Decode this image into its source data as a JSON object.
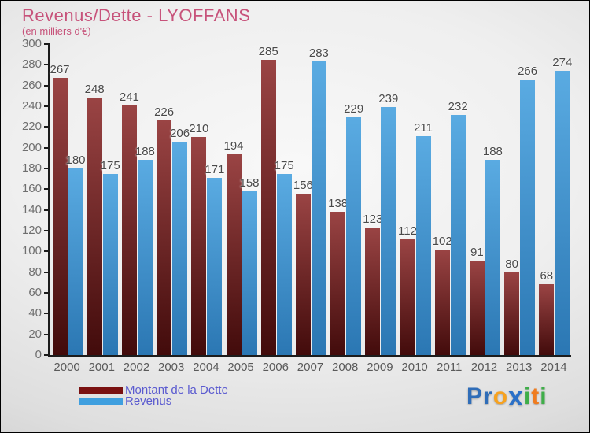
{
  "title": {
    "text": "Revenus/Dette - LYOFFANS",
    "subtitle": "(en milliers d'€)",
    "color": "#c7527a"
  },
  "chart_data": {
    "type": "bar",
    "title": "Revenus/Dette - LYOFFANS",
    "subtitle": "(en milliers d'€)",
    "categories": [
      "2000",
      "2001",
      "2002",
      "2003",
      "2004",
      "2005",
      "2006",
      "2007",
      "2008",
      "2009",
      "2010",
      "2011",
      "2012",
      "2013",
      "2014"
    ],
    "series": [
      {
        "name": "Montant de la Dette",
        "values": [
          267,
          248,
          241,
          226,
          210,
          194,
          285,
          156,
          138,
          123,
          112,
          102,
          91,
          80,
          68
        ],
        "color_top": "#9a4444",
        "color_bottom": "#420b0b",
        "legend_color": "#7a1111"
      },
      {
        "name": "Revenus",
        "values": [
          180,
          175,
          188,
          206,
          171,
          158,
          175,
          283,
          229,
          239,
          211,
          232,
          188,
          266,
          274
        ],
        "color_top": "#5aabe2",
        "color_bottom": "#2b77b3",
        "legend_color": "#3f9fdf"
      }
    ],
    "ylim": [
      0,
      300
    ],
    "ytick_step": 20,
    "grid": false,
    "legend_position": "bottom-left",
    "value_labels": true,
    "xlabel": "",
    "ylabel": ""
  },
  "legend": {
    "text_color": "#5b5bd0"
  },
  "logo": {
    "text": "Proxiti",
    "letters": [
      {
        "ch": "P",
        "color": "#2f6db8",
        "big": false
      },
      {
        "ch": "r",
        "color": "#2f6db8",
        "big": false
      },
      {
        "ch": "o",
        "color": "#f6a220",
        "big": false
      },
      {
        "ch": "x",
        "color": "#2a70c8",
        "big": true
      },
      {
        "ch": "i",
        "color": "#3fae49",
        "big": false
      },
      {
        "ch": "t",
        "color": "#f07c1f",
        "big": false
      },
      {
        "ch": "i",
        "color": "#3fae49",
        "big": false
      }
    ]
  }
}
